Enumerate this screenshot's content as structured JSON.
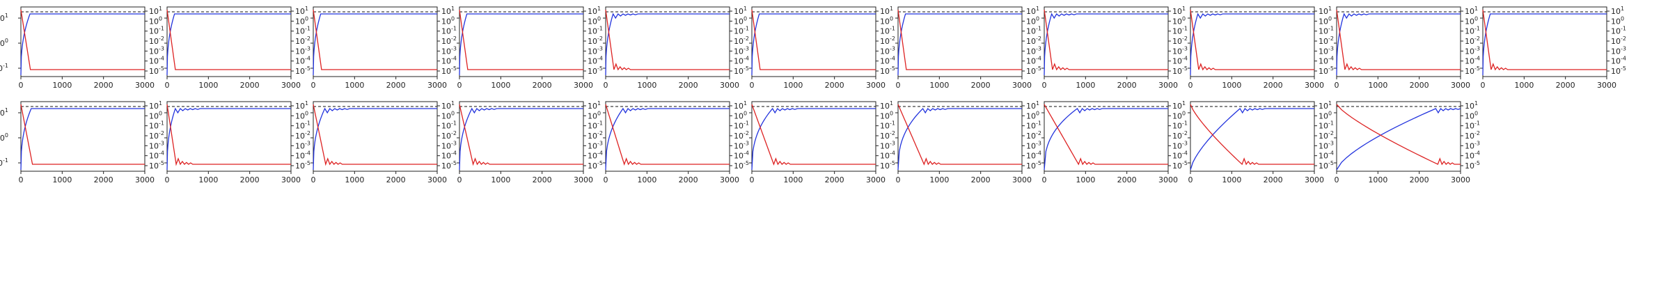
{
  "chart_data": {
    "type": "line",
    "layout": {
      "rows": 2,
      "cols": 11
    },
    "x_ticks": [
      0,
      1000,
      2000,
      3000
    ],
    "x_tick_labels": [
      "0",
      "1000",
      "2000",
      "3000"
    ],
    "xlim": [
      0,
      3000
    ],
    "y_scale": "log",
    "left_axis_ticks": [
      "10^-1",
      "10^0",
      "10^1"
    ],
    "right_axis_ticks": [
      "10^-5",
      "10^-4",
      "10^-3",
      "10^-2",
      "10^-1",
      "10^0",
      "10^1"
    ],
    "reference_line": {
      "style": "dashed",
      "color": "#111111"
    },
    "colors": {
      "blue_series": "#2233dd",
      "red_series": "#dd2222"
    },
    "rows": [
      {
        "panels": [
          {
            "blue": {
              "rise_end": 220,
              "overshoot": false
            },
            "red": {
              "fall_end": 230,
              "bump": false
            }
          },
          {
            "blue": {
              "rise_end": 180,
              "overshoot": false
            },
            "red": {
              "fall_end": 200,
              "bump": false
            }
          },
          {
            "blue": {
              "rise_end": 180,
              "overshoot": false
            },
            "red": {
              "fall_end": 200,
              "bump": false
            }
          },
          {
            "blue": {
              "rise_end": 180,
              "overshoot": false
            },
            "red": {
              "fall_end": 200,
              "bump": false
            }
          },
          {
            "blue": {
              "rise_end": 180,
              "overshoot": true
            },
            "red": {
              "fall_end": 200,
              "bump": true
            }
          },
          {
            "blue": {
              "rise_end": 180,
              "overshoot": false
            },
            "red": {
              "fall_end": 200,
              "bump": false
            }
          },
          {
            "blue": {
              "rise_end": 180,
              "overshoot": false
            },
            "red": {
              "fall_end": 200,
              "bump": false
            }
          },
          {
            "blue": {
              "rise_end": 180,
              "overshoot": true
            },
            "red": {
              "fall_end": 200,
              "bump": true
            }
          },
          {
            "blue": {
              "rise_end": 180,
              "overshoot": true
            },
            "red": {
              "fall_end": 200,
              "bump": true
            }
          },
          {
            "blue": {
              "rise_end": 180,
              "overshoot": true
            },
            "red": {
              "fall_end": 200,
              "bump": true
            }
          },
          {
            "blue": {
              "rise_end": 180,
              "overshoot": false
            },
            "red": {
              "fall_end": 200,
              "bump": true
            }
          }
        ]
      },
      {
        "panels": [
          {
            "blue": {
              "rise_end": 250,
              "overshoot": false
            },
            "red": {
              "fall_end": 280,
              "bump": false
            }
          },
          {
            "blue": {
              "rise_end": 200,
              "overshoot": true
            },
            "red": {
              "fall_end": 220,
              "bump": true
            }
          },
          {
            "blue": {
              "rise_end": 280,
              "overshoot": true
            },
            "red": {
              "fall_end": 300,
              "bump": true
            }
          },
          {
            "blue": {
              "rise_end": 300,
              "overshoot": true
            },
            "red": {
              "fall_end": 330,
              "bump": true
            }
          },
          {
            "blue": {
              "rise_end": 420,
              "overshoot": true
            },
            "red": {
              "fall_end": 450,
              "bump": true
            }
          },
          {
            "blue": {
              "rise_end": 500,
              "overshoot": true
            },
            "red": {
              "fall_end": 530,
              "bump": true
            }
          },
          {
            "blue": {
              "rise_end": 600,
              "overshoot": true
            },
            "red": {
              "fall_end": 630,
              "bump": true
            }
          },
          {
            "blue": {
              "rise_end": 800,
              "overshoot": true
            },
            "red": {
              "fall_end": 830,
              "bump": true
            }
          },
          {
            "blue": {
              "rise_end": 1200,
              "overshoot": true
            },
            "red": {
              "fall_end": 1250,
              "bump": true
            }
          },
          {
            "blue": {
              "rise_end": 2400,
              "overshoot": true
            },
            "red": {
              "fall_end": 2450,
              "bump": true
            }
          }
        ]
      }
    ]
  }
}
